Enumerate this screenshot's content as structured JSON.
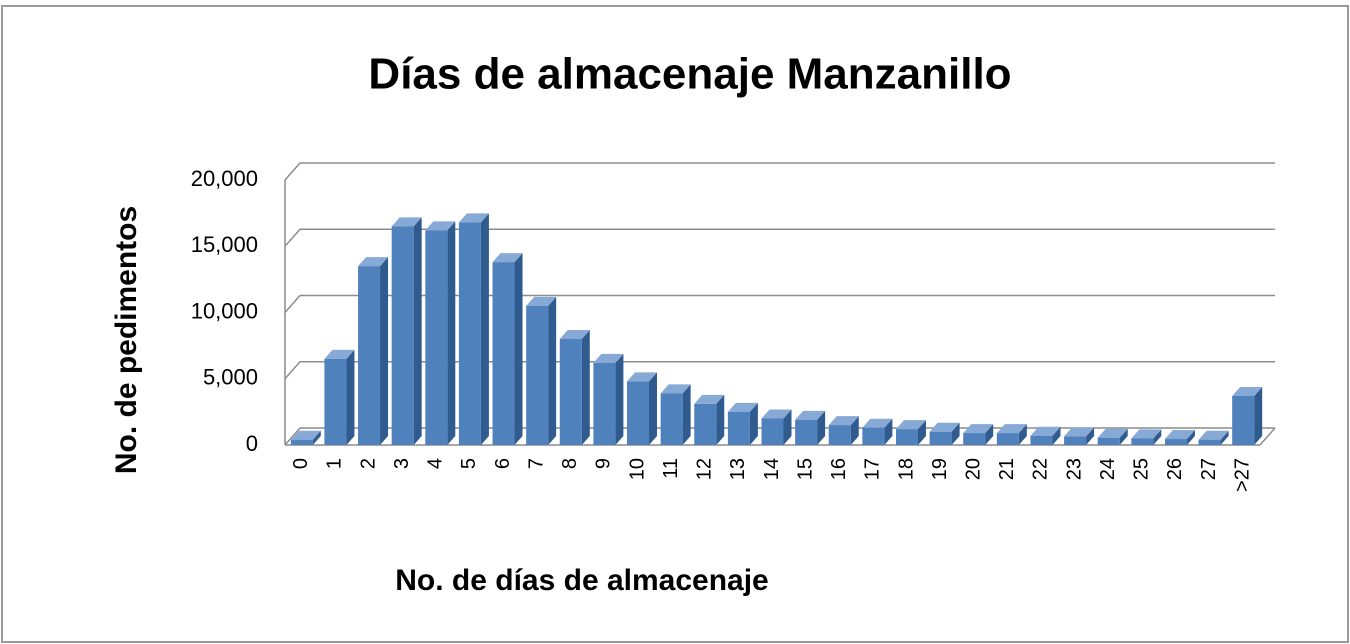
{
  "chart_data": {
    "type": "bar3d",
    "title": "Días de almacenaje Manzanillo",
    "x_label": "No. de días de almacenaje",
    "y_label": "No. de pedimentos",
    "categories": [
      "0",
      "1",
      "2",
      "3",
      "4",
      "5",
      "6",
      "7",
      "8",
      "9",
      "10",
      "11",
      "12",
      "13",
      "14",
      "15",
      "16",
      "17",
      "18",
      "19",
      "20",
      "21",
      "22",
      "23",
      "24",
      "25",
      "26",
      "27",
      ">27"
    ],
    "values": [
      400,
      6500,
      13500,
      16500,
      16200,
      16800,
      13800,
      10500,
      8000,
      6200,
      4800,
      3900,
      3100,
      2500,
      2000,
      1900,
      1500,
      1300,
      1200,
      1000,
      900,
      900,
      700,
      650,
      550,
      500,
      450,
      400,
      3700
    ],
    "color": "#4f81bd",
    "ylim": [
      0,
      20000
    ],
    "yticks": [
      0,
      {
        "value": 5000,
        "label": "5,000"
      },
      {
        "value": 10000,
        "label": "10,000"
      },
      {
        "value": 15000,
        "label": "15,000"
      },
      {
        "value": 20000,
        "label": "20,000"
      }
    ],
    "grid": true
  }
}
